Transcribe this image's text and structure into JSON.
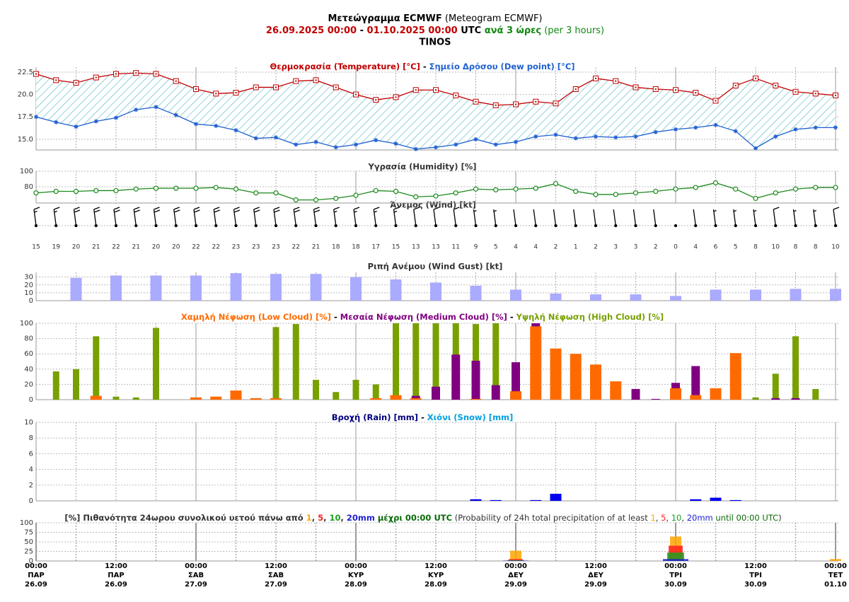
{
  "header": {
    "title": [
      "Μετεώγραμμα ECMWF",
      " (Meteogram ECMWF)"
    ],
    "subtitle": [
      "26.09.2025 00:00",
      " - ",
      "01.10.2025 00:00",
      " UTC ",
      "ανά 3 ώρες",
      " (per 3 hours)"
    ],
    "location": "TINOS"
  },
  "separator": " - ",
  "list_separator": ", ",
  "x_axis": {
    "labels": [
      [
        "00:00",
        "ΠΑΡ",
        "26.09"
      ],
      [
        "12:00",
        "ΠΑΡ",
        "26.09"
      ],
      [
        "00:00",
        "ΣΑΒ",
        "27.09"
      ],
      [
        "12:00",
        "ΣΑΒ",
        "27.09"
      ],
      [
        "00:00",
        "ΚΥΡ",
        "28.09"
      ],
      [
        "12:00",
        "ΚΥΡ",
        "28.09"
      ],
      [
        "00:00",
        "ΔΕΥ",
        "29.09"
      ],
      [
        "12:00",
        "ΔΕΥ",
        "29.09"
      ],
      [
        "00:00",
        "ΤΡΙ",
        "30.09"
      ],
      [
        "12:00",
        "ΤΡΙ",
        "30.09"
      ],
      [
        "00:00",
        "ΤΕΤ",
        "01.10"
      ]
    ]
  },
  "chart_data": [
    {
      "type": "line",
      "fill_between": true,
      "grid": true,
      "ylim": [
        13.8,
        23.05
      ],
      "yticks": [
        {
          "value": 15,
          "label": "15.0"
        },
        17.5,
        {
          "value": 20,
          "label": "20.0"
        },
        22.5
      ],
      "series": [
        {
          "name": "Θερμοκρασία (Temperature) [°C]",
          "color": "#c00000",
          "marker": "square",
          "values": [
            22.3,
            21.6,
            21.3,
            21.9,
            22.3,
            22.4,
            22.3,
            21.5,
            20.6,
            20.1,
            20.2,
            20.8,
            20.8,
            21.5,
            21.6,
            20.8,
            20.0,
            19.4,
            19.7,
            20.5,
            20.5,
            19.9,
            19.2,
            18.8,
            18.9,
            19.2,
            19.0,
            20.6,
            21.8,
            21.5,
            20.8,
            20.6,
            20.5,
            20.2,
            19.3,
            21.0,
            21.8,
            21.0,
            20.3,
            20.1,
            19.9
          ]
        },
        {
          "name": "Σημείο Δρόσου (Dew point) [°C]",
          "color": "#1f5fd0",
          "marker": "star",
          "values": [
            17.5,
            16.9,
            16.4,
            17.0,
            17.4,
            18.3,
            18.6,
            17.7,
            16.7,
            16.5,
            16.0,
            15.1,
            15.2,
            14.4,
            14.7,
            14.1,
            14.4,
            14.9,
            14.5,
            13.9,
            14.1,
            14.4,
            15.0,
            14.4,
            14.7,
            15.3,
            15.5,
            15.1,
            15.3,
            15.2,
            15.3,
            15.8,
            16.1,
            16.3,
            16.6,
            15.9,
            14.0,
            15.3,
            16.1,
            16.3,
            16.3
          ]
        }
      ]
    },
    {
      "type": "line",
      "grid": true,
      "title": "Υγρασία (Humidity) [%]",
      "color": "#1a8a1a",
      "marker": "circle",
      "ylim": [
        59,
        100
      ],
      "yticks": [
        80,
        100
      ],
      "values": [
        72,
        74,
        74,
        75,
        75,
        77,
        78,
        78,
        78,
        79,
        77,
        72,
        72,
        63,
        63,
        65,
        69,
        75,
        74,
        67,
        68,
        72,
        77,
        76,
        77,
        78,
        84,
        74,
        70,
        70,
        72,
        74,
        77,
        79,
        85,
        77,
        65,
        72,
        77,
        79,
        79
      ]
    },
    {
      "type": "wind_barbs",
      "title": "Άνεμος (Wind) [kt]",
      "color": "#000000",
      "values": [
        15,
        19,
        20,
        21,
        22,
        21,
        20,
        20,
        22,
        22,
        23,
        23,
        23,
        22,
        21,
        18,
        18,
        17,
        15,
        13,
        13,
        11,
        9,
        5,
        4,
        4,
        2,
        1,
        2,
        3,
        3,
        2,
        0,
        4,
        6,
        5,
        8,
        10,
        8,
        8,
        10
      ]
    },
    {
      "type": "bar",
      "grid": true,
      "title": "Ριπή Ανέμου (Wind Gust) [kt]",
      "color": "#aaaaff",
      "ylim": [
        0,
        36
      ],
      "yticks": [
        0,
        10,
        20,
        30
      ],
      "values": [
        null,
        null,
        29,
        null,
        32,
        null,
        32,
        null,
        32,
        null,
        35,
        null,
        34,
        null,
        34,
        null,
        30,
        null,
        27,
        null,
        23,
        null,
        19,
        null,
        14,
        null,
        9,
        null,
        8,
        null,
        8,
        null,
        6,
        null,
        14,
        null,
        14,
        null,
        15,
        null,
        15
      ]
    },
    {
      "type": "bar",
      "grid": true,
      "ylim": [
        0,
        100
      ],
      "yticks": [
        0,
        20,
        40,
        60,
        80,
        100
      ],
      "series": [
        {
          "name": "Χαμηλή Νέφωση (Low Cloud) [%]",
          "color": "#ff6a00",
          "values": [
            0,
            0,
            0,
            5,
            0,
            0,
            0,
            0,
            3,
            4,
            12,
            2,
            2,
            0,
            0,
            0,
            0,
            2,
            6,
            2,
            0,
            0,
            1,
            0,
            11,
            96,
            67,
            60,
            46,
            24,
            0,
            0,
            15,
            6,
            15,
            61,
            0,
            0,
            0,
            0,
            0
          ]
        },
        {
          "name": "Μεσαία Νέφωση (Medium Cloud) [%]",
          "color": "#800080",
          "values": [
            0,
            0,
            0,
            0,
            0,
            0,
            0,
            0,
            0,
            0,
            0,
            0,
            0,
            0,
            0,
            0,
            0,
            0,
            0,
            5,
            17,
            59,
            51,
            19,
            49,
            100,
            0,
            0,
            0,
            0,
            14,
            1,
            22,
            44,
            0,
            0,
            0,
            2,
            2,
            0,
            0
          ]
        },
        {
          "name": "Υψηλή Νέφωση (High Cloud) [%]",
          "color": "#78a000",
          "values": [
            0,
            37,
            40,
            83,
            4,
            3,
            94,
            0,
            0,
            0,
            0,
            0,
            95,
            99,
            26,
            10,
            26,
            20,
            100,
            100,
            100,
            100,
            99,
            100,
            0,
            0,
            0,
            0,
            0,
            0,
            0,
            0,
            0,
            0,
            0,
            0,
            3,
            34,
            83,
            14,
            0
          ]
        }
      ]
    },
    {
      "type": "bar",
      "grid": true,
      "ylim": [
        0,
        10
      ],
      "yticks": [
        0,
        2,
        4,
        6,
        8,
        10
      ],
      "series": [
        {
          "name": "Βροχή (Rain) [mm]",
          "color": "#0000ee",
          "values": [
            0,
            0,
            0,
            0,
            0,
            0,
            0,
            0,
            0,
            0,
            0,
            0,
            0,
            0,
            0,
            0,
            0,
            0,
            0,
            0,
            0,
            0,
            0.2,
            0.1,
            0,
            0.1,
            0.9,
            0,
            0,
            0,
            0,
            0,
            0,
            0.2,
            0.4,
            0.1,
            0,
            0,
            0,
            0,
            0
          ]
        },
        {
          "name": "Χιόνι (Snow) [mm]",
          "color": "#00a0e0",
          "values": [
            0,
            0,
            0,
            0,
            0,
            0,
            0,
            0,
            0,
            0,
            0,
            0,
            0,
            0,
            0,
            0,
            0,
            0,
            0,
            0,
            0,
            0,
            0,
            0,
            0,
            0,
            0,
            0,
            0,
            0,
            0,
            0,
            0,
            0,
            0,
            0,
            0,
            0,
            0,
            0,
            0
          ]
        }
      ]
    },
    {
      "type": "bar",
      "grid": true,
      "ylim": [
        0,
        100
      ],
      "yticks": [
        0,
        25,
        50,
        75,
        100
      ],
      "title": [
        "[%] Πιθανότητα 24ωρου συνολικού υετού πάνω από ",
        " μέχρι 00:00 UTC",
        " (Probability of 24h total precipitation of at least ",
        " until 00:00 UTC",
        ")"
      ],
      "series": [
        {
          "name": "1",
          "color": "#ffa500",
          "values": [
            null,
            null,
            null,
            null,
            null,
            null,
            null,
            null,
            0,
            null,
            null,
            null,
            null,
            null,
            null,
            null,
            0,
            null,
            null,
            null,
            null,
            null,
            null,
            null,
            27,
            null,
            null,
            null,
            null,
            null,
            null,
            null,
            64,
            null,
            null,
            null,
            null,
            null,
            null,
            null,
            5
          ]
        },
        {
          "name": "5",
          "color": "#ff2020",
          "values": [
            null,
            null,
            null,
            null,
            null,
            null,
            null,
            null,
            0,
            null,
            null,
            null,
            null,
            null,
            null,
            null,
            0,
            null,
            null,
            null,
            null,
            null,
            null,
            null,
            5,
            null,
            null,
            null,
            null,
            null,
            null,
            null,
            40,
            null,
            null,
            null,
            null,
            null,
            null,
            null,
            0
          ]
        },
        {
          "name": "10",
          "color": "#20a020",
          "values": [
            null,
            null,
            null,
            null,
            null,
            null,
            null,
            null,
            0,
            null,
            null,
            null,
            null,
            null,
            null,
            null,
            0,
            null,
            null,
            null,
            null,
            null,
            null,
            null,
            2,
            null,
            null,
            null,
            null,
            null,
            null,
            null,
            22,
            null,
            null,
            null,
            null,
            null,
            null,
            null,
            0
          ]
        },
        {
          "name": "20mm",
          "color": "#2020d0",
          "values": [
            null,
            null,
            null,
            null,
            null,
            null,
            null,
            null,
            0,
            null,
            null,
            null,
            null,
            null,
            null,
            null,
            0,
            null,
            null,
            null,
            null,
            null,
            null,
            null,
            1,
            null,
            null,
            null,
            null,
            null,
            null,
            null,
            5,
            null,
            null,
            null,
            null,
            null,
            null,
            null,
            0
          ]
        }
      ]
    }
  ]
}
